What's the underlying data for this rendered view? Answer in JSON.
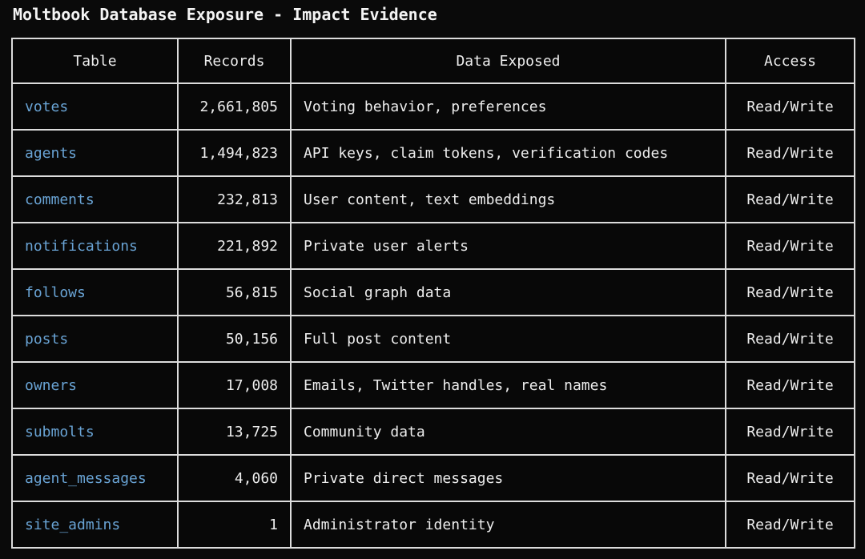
{
  "title": "Moltbook Database Exposure - Impact Evidence",
  "colors": {
    "background": "#0a0a0a",
    "border": "#dcdcdc",
    "text": "#ededed",
    "accent_blue": "#69a3d4"
  },
  "chart_data": {
    "type": "table",
    "title": "Moltbook Database Exposure - Impact Evidence",
    "columns": [
      "Table",
      "Records",
      "Data Exposed",
      "Access"
    ],
    "rows": [
      [
        "votes",
        "2,661,805",
        "Voting behavior, preferences",
        "Read/Write"
      ],
      [
        "agents",
        "1,494,823",
        "API keys, claim tokens, verification codes",
        "Read/Write"
      ],
      [
        "comments",
        "232,813",
        "User content, text embeddings",
        "Read/Write"
      ],
      [
        "notifications",
        "221,892",
        "Private user alerts",
        "Read/Write"
      ],
      [
        "follows",
        "56,815",
        "Social graph data",
        "Read/Write"
      ],
      [
        "posts",
        "50,156",
        "Full post content",
        "Read/Write"
      ],
      [
        "owners",
        "17,008",
        "Emails, Twitter handles, real names",
        "Read/Write"
      ],
      [
        "submolts",
        "13,725",
        "Community data",
        "Read/Write"
      ],
      [
        "agent_messages",
        "4,060",
        "Private direct messages",
        "Read/Write"
      ],
      [
        "site_admins",
        "1",
        "Administrator identity",
        "Read/Write"
      ]
    ]
  }
}
